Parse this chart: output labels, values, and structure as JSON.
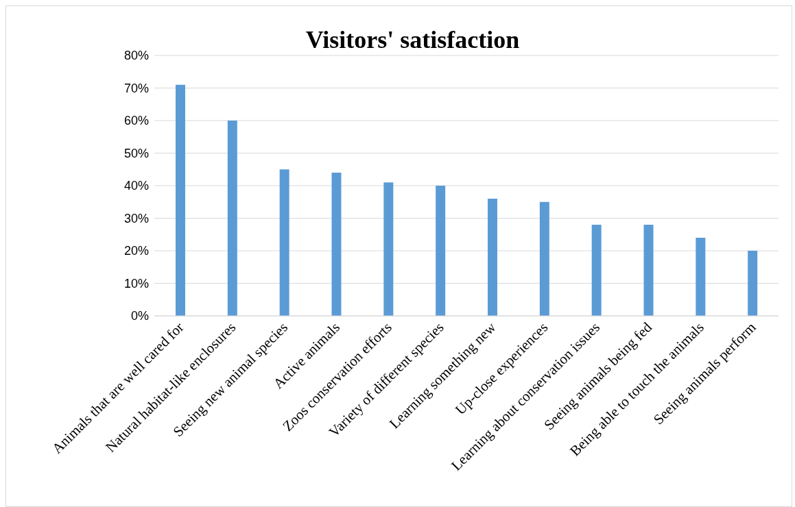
{
  "chart_data": {
    "type": "bar",
    "title": "Visitors' satisfaction",
    "categories": [
      "Animals that are well cared for",
      "Natural habitat-like enclosures",
      "Seeing new animal species",
      "Active animals",
      "Zoos conservation efforts",
      "Variety of different species",
      "Learning something new",
      "Up-close experiences",
      "Learning about conservation issues",
      "Seeing animals being fed",
      "Being able to touch the animals",
      "Seeing animals perform"
    ],
    "values": [
      71,
      60,
      45,
      44,
      41,
      40,
      36,
      35,
      28,
      28,
      24,
      20
    ],
    "color": "#5b9bd5",
    "ylim": [
      0,
      80
    ],
    "yticks": [
      {
        "value": 0,
        "label": "0%"
      },
      {
        "value": 10,
        "label": "10%"
      },
      {
        "value": 20,
        "label": "20%"
      },
      {
        "value": 30,
        "label": "30%"
      },
      {
        "value": 40,
        "label": "40%"
      },
      {
        "value": 50,
        "label": "50%"
      },
      {
        "value": 60,
        "label": "60%"
      },
      {
        "value": 70,
        "label": "70%"
      },
      {
        "value": 80,
        "label": "80%"
      }
    ],
    "grid": "y",
    "legend": false
  }
}
